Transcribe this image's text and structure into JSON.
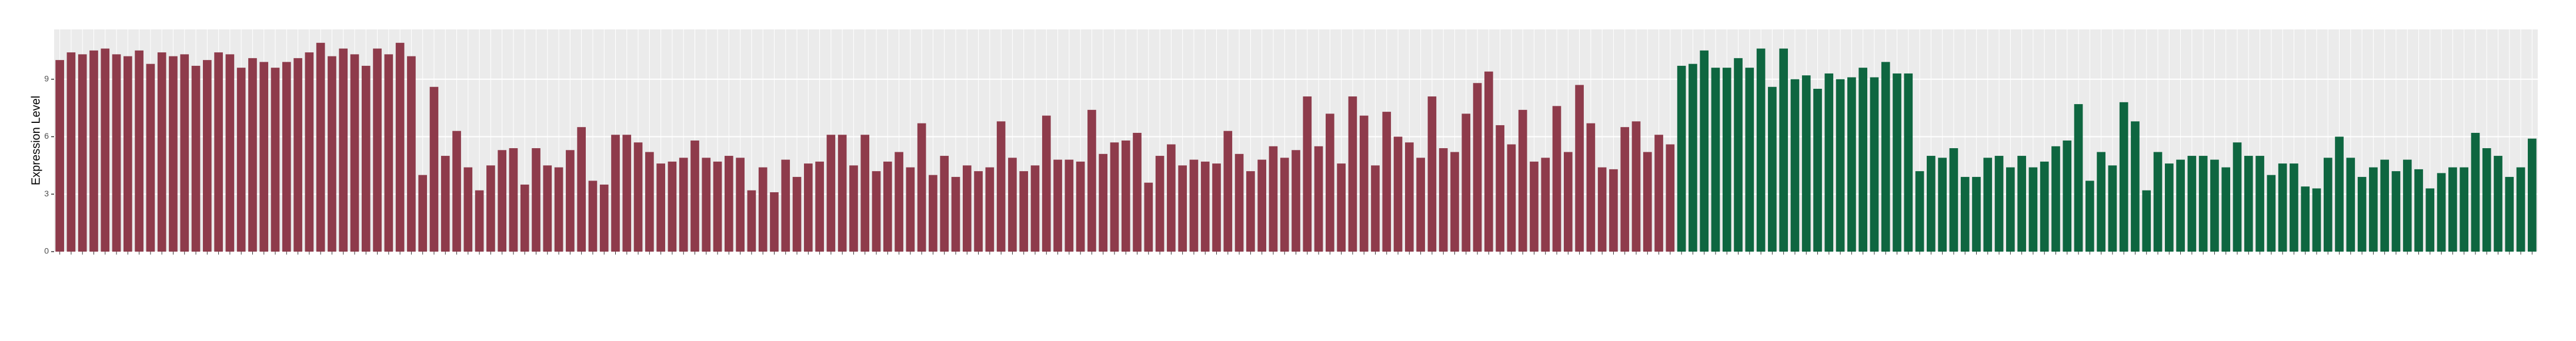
{
  "chart_data": {
    "type": "bar",
    "ylabel": "Expression Level",
    "ylim": [
      0,
      11.6
    ],
    "yticks": [
      0,
      3,
      6,
      9
    ],
    "grid": true,
    "background": "#ebebeb",
    "series": [
      {
        "color": "#8e3b4b",
        "values": [
          10.0,
          10.4,
          10.3,
          10.5,
          10.6,
          10.3,
          10.2,
          10.5,
          9.8,
          10.4,
          10.2,
          10.3,
          9.7,
          10.0,
          10.4,
          10.3,
          9.6,
          10.1,
          9.9,
          9.6,
          9.9,
          10.1,
          10.4,
          10.9,
          10.2,
          10.6,
          10.3,
          9.7,
          10.6,
          10.3,
          10.9,
          10.2,
          4.0,
          8.6,
          5.0,
          6.3,
          4.4,
          3.2,
          4.5,
          5.3,
          5.4,
          3.5,
          5.4,
          4.5,
          4.4,
          5.3,
          6.5,
          3.7,
          3.5,
          6.1,
          6.1,
          5.7,
          5.2,
          4.6,
          4.7,
          4.9,
          5.8,
          4.9,
          4.7,
          5.0,
          4.9,
          3.2,
          4.4,
          3.1,
          4.8,
          3.9,
          4.6,
          4.7,
          6.1,
          6.1,
          4.5,
          6.1,
          4.2,
          4.7,
          5.2,
          4.4,
          6.7,
          4.0,
          5.0,
          3.9,
          4.5,
          4.2,
          4.4,
          6.8,
          4.9,
          4.2,
          4.5,
          7.1,
          4.8,
          4.8,
          4.7,
          7.4,
          5.1,
          5.7,
          5.8,
          6.2,
          3.6,
          5.0,
          5.6,
          4.5,
          4.8,
          4.7,
          4.6,
          6.3,
          5.1,
          4.2,
          4.8,
          5.5,
          4.9,
          5.3,
          8.1,
          5.5,
          7.2,
          4.6,
          8.1,
          7.1,
          4.5,
          7.3,
          6.0,
          5.7,
          4.9,
          8.1,
          5.4,
          5.2,
          7.2,
          8.8,
          9.4,
          6.6,
          5.6,
          7.4,
          4.7,
          4.9,
          7.6,
          5.2,
          8.7,
          6.7,
          4.4,
          4.3,
          6.5,
          6.8,
          5.2,
          6.1,
          5.6
        ]
      },
      {
        "color": "#0e6640",
        "values": [
          9.7,
          9.8,
          10.5,
          9.6,
          9.6,
          10.1,
          9.6,
          10.6,
          8.6,
          10.6,
          9.0,
          9.2,
          8.5,
          9.3,
          9.0,
          9.1,
          9.6,
          9.1,
          9.9,
          9.3,
          9.3,
          4.2,
          5.0,
          4.9,
          5.4,
          3.9,
          3.9,
          4.9,
          5.0,
          4.4,
          5.0,
          4.4,
          4.7,
          5.5,
          5.8,
          7.7,
          3.7,
          5.2,
          4.5,
          7.8,
          6.8,
          3.2,
          5.2,
          4.6,
          4.8,
          5.0,
          5.0,
          4.8,
          4.4,
          5.7,
          5.0,
          5.0,
          4.0,
          4.6,
          4.6,
          3.4,
          3.3,
          4.9,
          6.0,
          4.9,
          3.9,
          4.4,
          4.8,
          4.2,
          4.8,
          4.3,
          3.3,
          4.1,
          4.4,
          4.4,
          6.2,
          5.4,
          5.0,
          3.9,
          4.4,
          5.9
        ]
      }
    ]
  }
}
